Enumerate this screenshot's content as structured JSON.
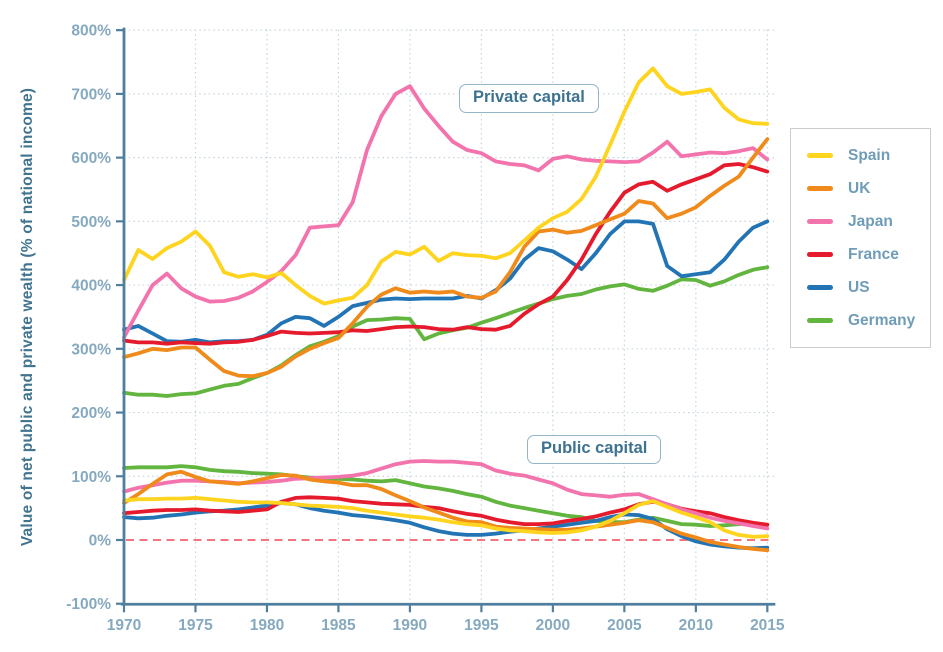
{
  "chart_data": {
    "type": "line",
    "ylabel": "Value of net public and private wealth (% of national income)",
    "annotations": {
      "private": "Private capital",
      "public": "Public capital"
    },
    "x_start": 1970,
    "x_ticks": [
      1970,
      1975,
      1980,
      1985,
      1990,
      1995,
      2000,
      2005,
      2010,
      2015
    ],
    "y_ticks": [
      -100,
      0,
      100,
      200,
      300,
      400,
      500,
      600,
      700,
      800
    ],
    "y_tick_suffix": "%",
    "xlim": [
      1970,
      2015
    ],
    "ylim": [
      -100,
      800
    ],
    "grid": "dotted",
    "zero_line": {
      "value": 0,
      "style": "dashed",
      "color": "#f4757e"
    },
    "legend_position": "right",
    "axis_color": "#4e7f9e",
    "grid_color": "#c6d5de",
    "tick_label_color": "#85a9bf",
    "series": [
      {
        "name": "Spain",
        "color": "#ffd41f",
        "private": [
          408,
          455,
          441,
          458,
          468,
          484,
          462,
          420,
          413,
          417,
          412,
          419,
          400,
          383,
          371,
          376,
          380,
          400,
          437,
          452,
          448,
          460,
          438,
          450,
          447,
          446,
          442,
          450,
          470,
          490,
          505,
          515,
          535,
          570,
          620,
          672,
          718,
          740,
          712,
          700,
          703,
          707,
          678,
          660,
          654,
          653
        ],
        "public": [
          62,
          64,
          64,
          65,
          65,
          66,
          64,
          62,
          60,
          59,
          59,
          58,
          56,
          54,
          53,
          52,
          50,
          46,
          43,
          40,
          37,
          35,
          32,
          28,
          25,
          23,
          18,
          15,
          14,
          12,
          11,
          12,
          15,
          21,
          30,
          42,
          55,
          61,
          52,
          43,
          36,
          28,
          15,
          8,
          5,
          6
        ]
      },
      {
        "name": "UK",
        "color": "#ef8a1b",
        "private": [
          287,
          293,
          300,
          298,
          302,
          302,
          283,
          265,
          258,
          257,
          262,
          272,
          288,
          300,
          309,
          317,
          340,
          366,
          385,
          395,
          388,
          390,
          388,
          390,
          382,
          380,
          390,
          420,
          460,
          484,
          487,
          482,
          485,
          494,
          503,
          512,
          532,
          528,
          505,
          512,
          522,
          540,
          556,
          570,
          600,
          629
        ],
        "public": [
          58,
          72,
          88,
          103,
          107,
          99,
          92,
          90,
          88,
          92,
          97,
          102,
          101,
          95,
          92,
          90,
          86,
          86,
          80,
          70,
          61,
          51,
          43,
          35,
          29,
          28,
          21,
          19,
          18,
          17,
          16,
          16,
          18,
          21,
          24,
          27,
          31,
          28,
          19,
          10,
          4,
          -3,
          -7,
          -11,
          -14,
          -16
        ]
      },
      {
        "name": "Japan",
        "color": "#f373ad",
        "private": [
          318,
          360,
          400,
          418,
          395,
          382,
          374,
          375,
          380,
          390,
          405,
          422,
          447,
          490,
          492,
          494,
          530,
          612,
          665,
          700,
          712,
          677,
          650,
          625,
          612,
          607,
          594,
          590,
          588,
          580,
          598,
          602,
          597,
          595,
          594,
          593,
          594,
          608,
          625,
          602,
          605,
          608,
          607,
          610,
          615,
          597
        ],
        "public": [
          76,
          82,
          86,
          90,
          93,
          93,
          92,
          91,
          89,
          90,
          91,
          93,
          96,
          97,
          98,
          99,
          101,
          105,
          112,
          119,
          123,
          124,
          123,
          123,
          121,
          119,
          109,
          104,
          101,
          95,
          89,
          79,
          72,
          70,
          68,
          71,
          72,
          64,
          56,
          48,
          42,
          35,
          30,
          26,
          22,
          18
        ]
      },
      {
        "name": "France",
        "color": "#e51b2d",
        "private": [
          313,
          310,
          310,
          308,
          310,
          309,
          308,
          310,
          311,
          314,
          320,
          327,
          325,
          324,
          325,
          326,
          329,
          328,
          331,
          334,
          335,
          334,
          331,
          330,
          334,
          331,
          330,
          336,
          355,
          370,
          382,
          408,
          440,
          480,
          515,
          545,
          558,
          562,
          548,
          558,
          566,
          574,
          588,
          590,
          585,
          578
        ],
        "public": [
          42,
          44,
          46,
          47,
          47,
          48,
          46,
          45,
          44,
          46,
          48,
          60,
          66,
          67,
          66,
          65,
          61,
          59,
          57,
          56,
          55,
          52,
          50,
          45,
          41,
          38,
          32,
          28,
          25,
          25,
          26,
          30,
          33,
          37,
          43,
          48,
          56,
          60,
          56,
          49,
          45,
          42,
          36,
          31,
          27,
          24
        ]
      },
      {
        "name": "US",
        "color": "#2274b5",
        "private": [
          330,
          336,
          324,
          312,
          311,
          314,
          310,
          312,
          312,
          314,
          322,
          340,
          350,
          348,
          336,
          350,
          367,
          372,
          377,
          379,
          378,
          379,
          379,
          379,
          383,
          379,
          392,
          410,
          440,
          458,
          453,
          440,
          425,
          450,
          480,
          500,
          500,
          496,
          430,
          414,
          417,
          420,
          440,
          468,
          490,
          500
        ],
        "public": [
          36,
          34,
          35,
          38,
          40,
          43,
          45,
          46,
          48,
          51,
          54,
          58,
          56,
          50,
          46,
          43,
          39,
          37,
          34,
          31,
          27,
          20,
          14,
          10,
          8,
          8,
          10,
          13,
          15,
          18,
          21,
          24,
          27,
          30,
          36,
          40,
          39,
          33,
          17,
          6,
          -2,
          -7,
          -10,
          -12,
          -13,
          -12
        ]
      },
      {
        "name": "Germany",
        "color": "#62b53e",
        "private": [
          231,
          228,
          228,
          226,
          229,
          230,
          236,
          242,
          245,
          254,
          262,
          274,
          290,
          304,
          311,
          320,
          335,
          345,
          346,
          348,
          347,
          315,
          324,
          329,
          333,
          341,
          348,
          356,
          364,
          371,
          378,
          383,
          386,
          393,
          398,
          401,
          394,
          391,
          399,
          409,
          408,
          399,
          406,
          416,
          424,
          428
        ],
        "public": [
          113,
          114,
          114,
          114,
          116,
          114,
          110,
          108,
          107,
          105,
          104,
          103,
          100,
          98,
          97,
          96,
          95,
          93,
          92,
          94,
          89,
          84,
          81,
          77,
          72,
          68,
          60,
          54,
          50,
          46,
          42,
          38,
          36,
          30,
          28,
          28,
          32,
          35,
          30,
          25,
          24,
          22,
          23,
          25,
          26,
          24
        ]
      }
    ]
  }
}
